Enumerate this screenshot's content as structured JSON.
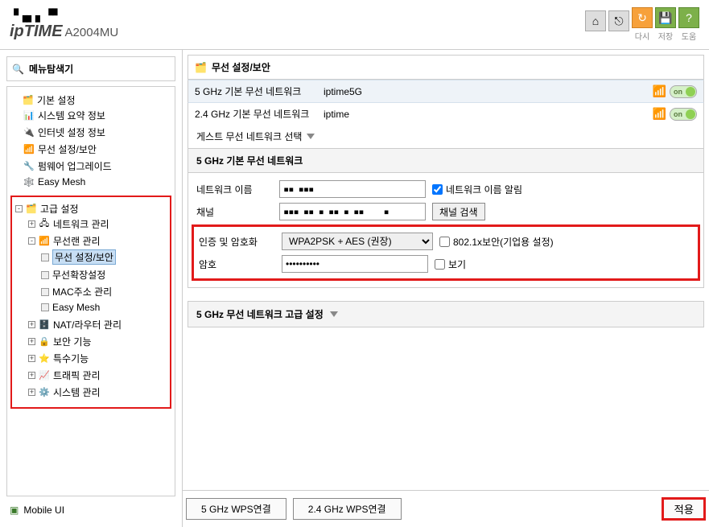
{
  "header": {
    "logo_dots": "▝▗▖▖▝▘",
    "logo_brand": "ipTIME",
    "logo_model": "A2004MU",
    "buttons": {
      "home": "⌂",
      "logout": "⎋",
      "refresh": "↻",
      "refresh_label": "다시",
      "save": "💾",
      "save_label": "저장",
      "help": "?",
      "help_label": "도움"
    }
  },
  "sidebar": {
    "title": "메뉴탐색기",
    "basic": {
      "label": "기본 설정",
      "items": [
        "시스템 요약 정보",
        "인터넷 설정 정보",
        "무선 설정/보안",
        "펌웨어 업그레이드",
        "Easy Mesh"
      ]
    },
    "advanced": {
      "label": "고급 설정",
      "network": "네트워크 관리",
      "wireless": {
        "label": "무선랜 관리",
        "items": [
          "무선 설정/보안",
          "무선확장설정",
          "MAC주소 관리",
          "Easy Mesh"
        ]
      },
      "nat": "NAT/라우터 관리",
      "security": "보안 기능",
      "special": "특수기능",
      "traffic": "트래픽 관리",
      "system": "시스템 관리"
    },
    "mobile_ui": "Mobile UI"
  },
  "content": {
    "title": "무선 설정/보안",
    "net5g": {
      "label": "5 GHz 기본 무선 네트워크",
      "ssid": "iptime5G",
      "toggle": "on"
    },
    "net24g": {
      "label": "2.4 GHz 기본 무선 네트워크",
      "ssid": "iptime",
      "toggle": "on"
    },
    "guest_label": "게스트 무선 네트워크 선택",
    "section5g": "5 GHz 기본 무선 네트워크",
    "form": {
      "network_name_label": "네트워크 이름",
      "network_name_value": "▪▪ ▪▪▪",
      "broadcast_label": "네트워크 이름 알림",
      "channel_label": "채널",
      "channel_value": "▪▪▪ ▪▪ ▪ ▪▪ ▪ ▪▪    ▪",
      "channel_search_btn": "채널 검색",
      "auth_label": "인증 및 암호화",
      "auth_value": "WPA2PSK + AES (권장)",
      "auth_8021x": "802.1x보안(기업용 설정)",
      "password_label": "암호",
      "password_value": "••••••••••",
      "password_show": "보기"
    },
    "adv5g": "5 GHz 무선 네트워크 고급 설정",
    "footer": {
      "wps5g": "5 GHz WPS연결",
      "wps24g": "2.4 GHz WPS연결",
      "apply": "적용"
    }
  },
  "colors": {
    "highlight_border": "#e21a1a",
    "selected_bg": "#c7def4",
    "alt_row": "#eef3f8",
    "toggle_green": "#8fd054"
  }
}
